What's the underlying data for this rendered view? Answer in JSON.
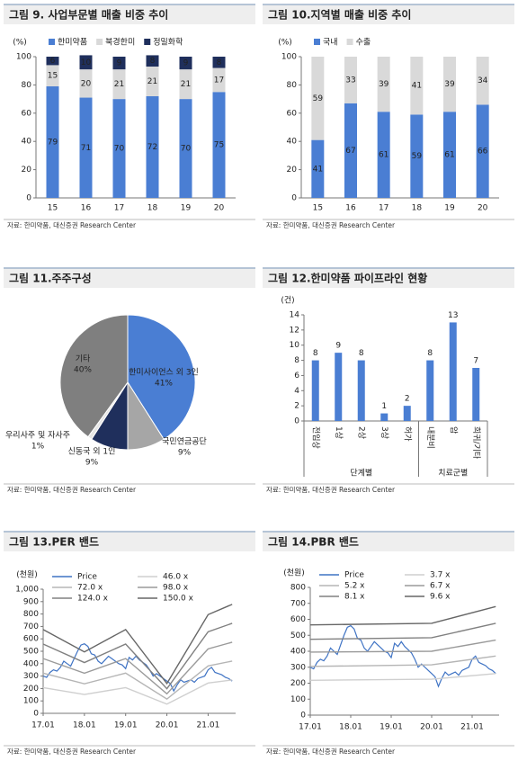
{
  "chart_data": [
    {
      "type": "bar",
      "stacked": true,
      "title": "그림 9. 사업부문별 매출 비중 추이",
      "y_unit": "(%)",
      "categories": [
        "15",
        "16",
        "17",
        "18",
        "19",
        "20"
      ],
      "series": [
        {
          "name": "한미약품",
          "color": "#4a7ed3",
          "values": [
            79,
            71,
            70,
            72,
            70,
            75
          ]
        },
        {
          "name": "북경한미",
          "color": "#d9d9d9",
          "values": [
            15,
            20,
            21,
            21,
            21,
            17
          ]
        },
        {
          "name": "정밀화학",
          "color": "#1f2f5c",
          "values": [
            6,
            10,
            9,
            8,
            9,
            8
          ]
        }
      ],
      "ylim": [
        0,
        100
      ],
      "yticks": [
        0,
        20,
        40,
        60,
        80,
        100
      ],
      "grid": false,
      "legend": "top",
      "source": "자료: 한미약품, 대신증권 Research Center"
    },
    {
      "type": "bar",
      "stacked": true,
      "title": "그림 10.지역별 매출 비중 추이",
      "y_unit": "(%)",
      "categories": [
        "15",
        "16",
        "17",
        "18",
        "19",
        "20"
      ],
      "series": [
        {
          "name": "국내",
          "color": "#4a7ed3",
          "values": [
            41,
            67,
            61,
            59,
            61,
            66
          ]
        },
        {
          "name": "수출",
          "color": "#d9d9d9",
          "values": [
            59,
            33,
            39,
            41,
            39,
            34
          ]
        }
      ],
      "ylim": [
        0,
        100
      ],
      "yticks": [
        0,
        20,
        40,
        60,
        80,
        100
      ],
      "grid": false,
      "legend": "top",
      "source": "자료: 한미약품, 대신증권 Research Center"
    },
    {
      "type": "pie",
      "title": "그림 11.주주구성",
      "categories": [
        "한미사이언스 외 3인",
        "국민연금공단",
        "신동국 외 1인",
        "우리사주 및 자사주",
        "기타"
      ],
      "values": [
        41,
        9,
        9,
        1,
        40
      ],
      "value_labels": [
        "41%",
        "9%",
        "9%",
        "1%",
        "40%"
      ],
      "colors": [
        "#4a7ed3",
        "#a6a6a6",
        "#1f2f5c",
        "#e6e6e6",
        "#7f7f7f"
      ],
      "source": "자료: 한미약품, 대신증권 Research Center"
    },
    {
      "type": "bar",
      "title": "그림 12.한미약품 파이프라인 현황",
      "y_unit": "(건)",
      "categories": [
        "전임상",
        "1상",
        "2상",
        "3상",
        "허가",
        "내분비",
        "암",
        "희귀/기타"
      ],
      "values": [
        8,
        9,
        8,
        1,
        2,
        8,
        13,
        7
      ],
      "color": "#4a7ed3",
      "groups": [
        {
          "name": "단계별",
          "size": 5
        },
        {
          "name": "치료군별",
          "size": 3
        }
      ],
      "ylim": [
        0,
        14
      ],
      "yticks": [
        0,
        2,
        4,
        6,
        8,
        10,
        12,
        14
      ],
      "grid": false,
      "source": "자료: 한미약품, 대신증권 Research Center"
    },
    {
      "type": "line",
      "title": "그림 13.PER 밴드",
      "y_unit": "(천원)",
      "xlim": [
        "17.01",
        "21.09"
      ],
      "xticks": [
        "17.01",
        "18.01",
        "19.01",
        "20.01",
        "21.01"
      ],
      "ylim": [
        0,
        1000
      ],
      "yticks": [
        0,
        100,
        200,
        300,
        400,
        500,
        600,
        700,
        800,
        900,
        {
          "value": 1000,
          "label": "1,000"
        }
      ],
      "grid": false,
      "legend": "top-left",
      "series": [
        {
          "name": "Price",
          "color": "#3f73c4",
          "x": [
            "17.01",
            "17.02",
            "17.03",
            "17.04",
            "17.05",
            "17.06",
            "17.07",
            "17.08",
            "17.09",
            "17.10",
            "17.11",
            "17.12",
            "18.01",
            "18.02",
            "18.03",
            "18.04",
            "18.05",
            "18.06",
            "18.07",
            "18.08",
            "18.09",
            "18.10",
            "18.11",
            "18.12",
            "19.01",
            "19.02",
            "19.03",
            "19.04",
            "19.05",
            "19.06",
            "19.07",
            "19.08",
            "19.09",
            "19.10",
            "19.11",
            "19.12",
            "20.01",
            "20.02",
            "20.03",
            "20.04",
            "20.05",
            "20.06",
            "20.07",
            "20.08",
            "20.09",
            "20.10",
            "20.11",
            "20.12",
            "21.01",
            "21.02",
            "21.03",
            "21.04",
            "21.05",
            "21.06",
            "21.07",
            "21.08"
          ],
          "values": [
            300,
            290,
            330,
            350,
            340,
            370,
            420,
            400,
            380,
            440,
            500,
            550,
            560,
            540,
            480,
            470,
            420,
            400,
            430,
            460,
            440,
            420,
            400,
            390,
            360,
            450,
            430,
            460,
            430,
            410,
            390,
            350,
            300,
            320,
            300,
            280,
            260,
            240,
            180,
            230,
            270,
            250,
            260,
            270,
            250,
            280,
            290,
            300,
            350,
            370,
            330,
            320,
            310,
            290,
            280,
            260
          ]
        },
        {
          "name": "46.0 x",
          "color": "#cfcfcf",
          "x": [
            "17.01",
            "18.01",
            "19.01",
            "20.01",
            "21.01",
            "21.08"
          ],
          "values": [
            207,
            152,
            207,
            74,
            244,
            269
          ]
        },
        {
          "name": "72.0 x",
          "color": "#b5b5b5",
          "x": [
            "17.01",
            "18.01",
            "19.01",
            "20.01",
            "21.01",
            "21.08"
          ],
          "values": [
            324,
            238,
            324,
            115,
            382,
            421
          ]
        },
        {
          "name": "98.0 x",
          "color": "#9a9a9a",
          "x": [
            "17.01",
            "18.01",
            "19.01",
            "20.01",
            "21.01",
            "21.08"
          ],
          "values": [
            441,
            323,
            441,
            157,
            519,
            573
          ]
        },
        {
          "name": "124.0 x",
          "color": "#808080",
          "x": [
            "17.01",
            "18.01",
            "19.01",
            "20.01",
            "21.01",
            "21.08"
          ],
          "values": [
            558,
            409,
            558,
            198,
            657,
            725
          ]
        },
        {
          "name": "150.0 x",
          "color": "#666666",
          "x": [
            "17.01",
            "18.01",
            "19.01",
            "20.01",
            "21.01",
            "21.08"
          ],
          "values": [
            675,
            495,
            675,
            240,
            795,
            878
          ]
        }
      ],
      "source": "자료: 한미약품, 대신증권 Research Center"
    },
    {
      "type": "line",
      "title": "그림 14.PBR 밴드",
      "y_unit": "(천원)",
      "xlim": [
        "17.01",
        "21.09"
      ],
      "xticks": [
        "17.01",
        "18.01",
        "19.01",
        "20.01",
        "21.01"
      ],
      "ylim": [
        0,
        800
      ],
      "yticks": [
        0,
        100,
        200,
        300,
        400,
        500,
        600,
        700,
        800
      ],
      "grid": false,
      "legend": "top-left",
      "series": [
        {
          "name": "Price",
          "color": "#3f73c4",
          "x": [
            "17.01",
            "17.02",
            "17.03",
            "17.04",
            "17.05",
            "17.06",
            "17.07",
            "17.08",
            "17.09",
            "17.10",
            "17.11",
            "17.12",
            "18.01",
            "18.02",
            "18.03",
            "18.04",
            "18.05",
            "18.06",
            "18.07",
            "18.08",
            "18.09",
            "18.10",
            "18.11",
            "18.12",
            "19.01",
            "19.02",
            "19.03",
            "19.04",
            "19.05",
            "19.06",
            "19.07",
            "19.08",
            "19.09",
            "19.10",
            "19.11",
            "19.12",
            "20.01",
            "20.02",
            "20.03",
            "20.04",
            "20.05",
            "20.06",
            "20.07",
            "20.08",
            "20.09",
            "20.10",
            "20.11",
            "20.12",
            "21.01",
            "21.02",
            "21.03",
            "21.04",
            "21.05",
            "21.06",
            "21.07",
            "21.08"
          ],
          "values": [
            300,
            290,
            330,
            350,
            340,
            370,
            420,
            400,
            380,
            440,
            500,
            550,
            560,
            540,
            480,
            470,
            420,
            400,
            430,
            460,
            440,
            420,
            400,
            390,
            360,
            450,
            430,
            460,
            430,
            410,
            390,
            350,
            300,
            320,
            300,
            280,
            260,
            240,
            180,
            230,
            270,
            250,
            260,
            270,
            250,
            280,
            290,
            300,
            350,
            370,
            330,
            320,
            310,
            290,
            280,
            260
          ]
        },
        {
          "name": "3.7 x",
          "color": "#cfcfcf",
          "x": [
            "17.01",
            "20.01",
            "21.08"
          ],
          "values": [
            218,
            225,
            260
          ]
        },
        {
          "name": "5.2 x",
          "color": "#b5b5b5",
          "x": [
            "17.01",
            "20.01",
            "21.08"
          ],
          "values": [
            305,
            315,
            370
          ]
        },
        {
          "name": "6.7 x",
          "color": "#9a9a9a",
          "x": [
            "17.01",
            "20.01",
            "21.08"
          ],
          "values": [
            395,
            400,
            470
          ]
        },
        {
          "name": "8.1 x",
          "color": "#808080",
          "x": [
            "17.01",
            "20.01",
            "21.08"
          ],
          "values": [
            475,
            485,
            575
          ]
        },
        {
          "name": "9.6 x",
          "color": "#666666",
          "x": [
            "17.01",
            "20.01",
            "21.08"
          ],
          "values": [
            565,
            575,
            680
          ]
        }
      ],
      "source": "자료: 한미약품, 대신증권 Research Center"
    }
  ]
}
